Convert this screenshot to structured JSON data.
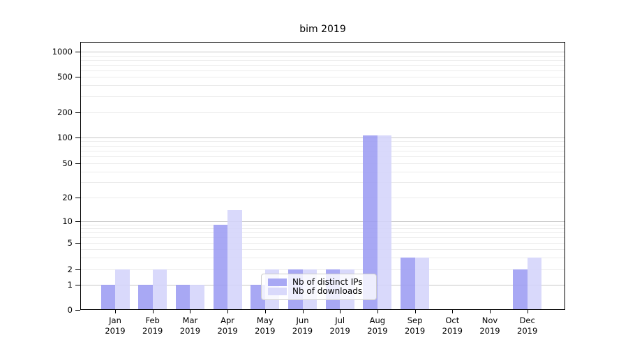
{
  "title": "bim 2019",
  "chart_data": {
    "type": "bar",
    "title": "bim 2019",
    "categories": [
      "Jan 2019",
      "Feb 2019",
      "Mar 2019",
      "Apr 2019",
      "May 2019",
      "Jun 2019",
      "Jul 2019",
      "Aug 2019",
      "Sep 2019",
      "Oct 2019",
      "Nov 2019",
      "Dec 2019"
    ],
    "series": [
      {
        "name": "Nb of distinct IPs",
        "color": "#9c9cf3",
        "values": [
          1,
          1,
          1,
          9,
          1,
          2,
          2,
          105,
          3,
          0,
          0,
          2
        ]
      },
      {
        "name": "Nb of downloads",
        "color": "#d4d4fa",
        "values": [
          2,
          2,
          1,
          14,
          2,
          2,
          2,
          105,
          3,
          0,
          0,
          3
        ]
      }
    ],
    "xlabel": "",
    "ylabel": "",
    "scale": "symlog",
    "yticks": [
      0,
      1,
      2,
      5,
      10,
      20,
      50,
      100,
      200,
      500,
      1000
    ],
    "ylim": [
      0,
      1300
    ],
    "grid": true,
    "legend_position": "lower-center",
    "colors": {
      "grid_major": "#c6c6c6",
      "grid_minor": "#ebebeb",
      "axis": "#000000",
      "background": "#ffffff"
    }
  }
}
